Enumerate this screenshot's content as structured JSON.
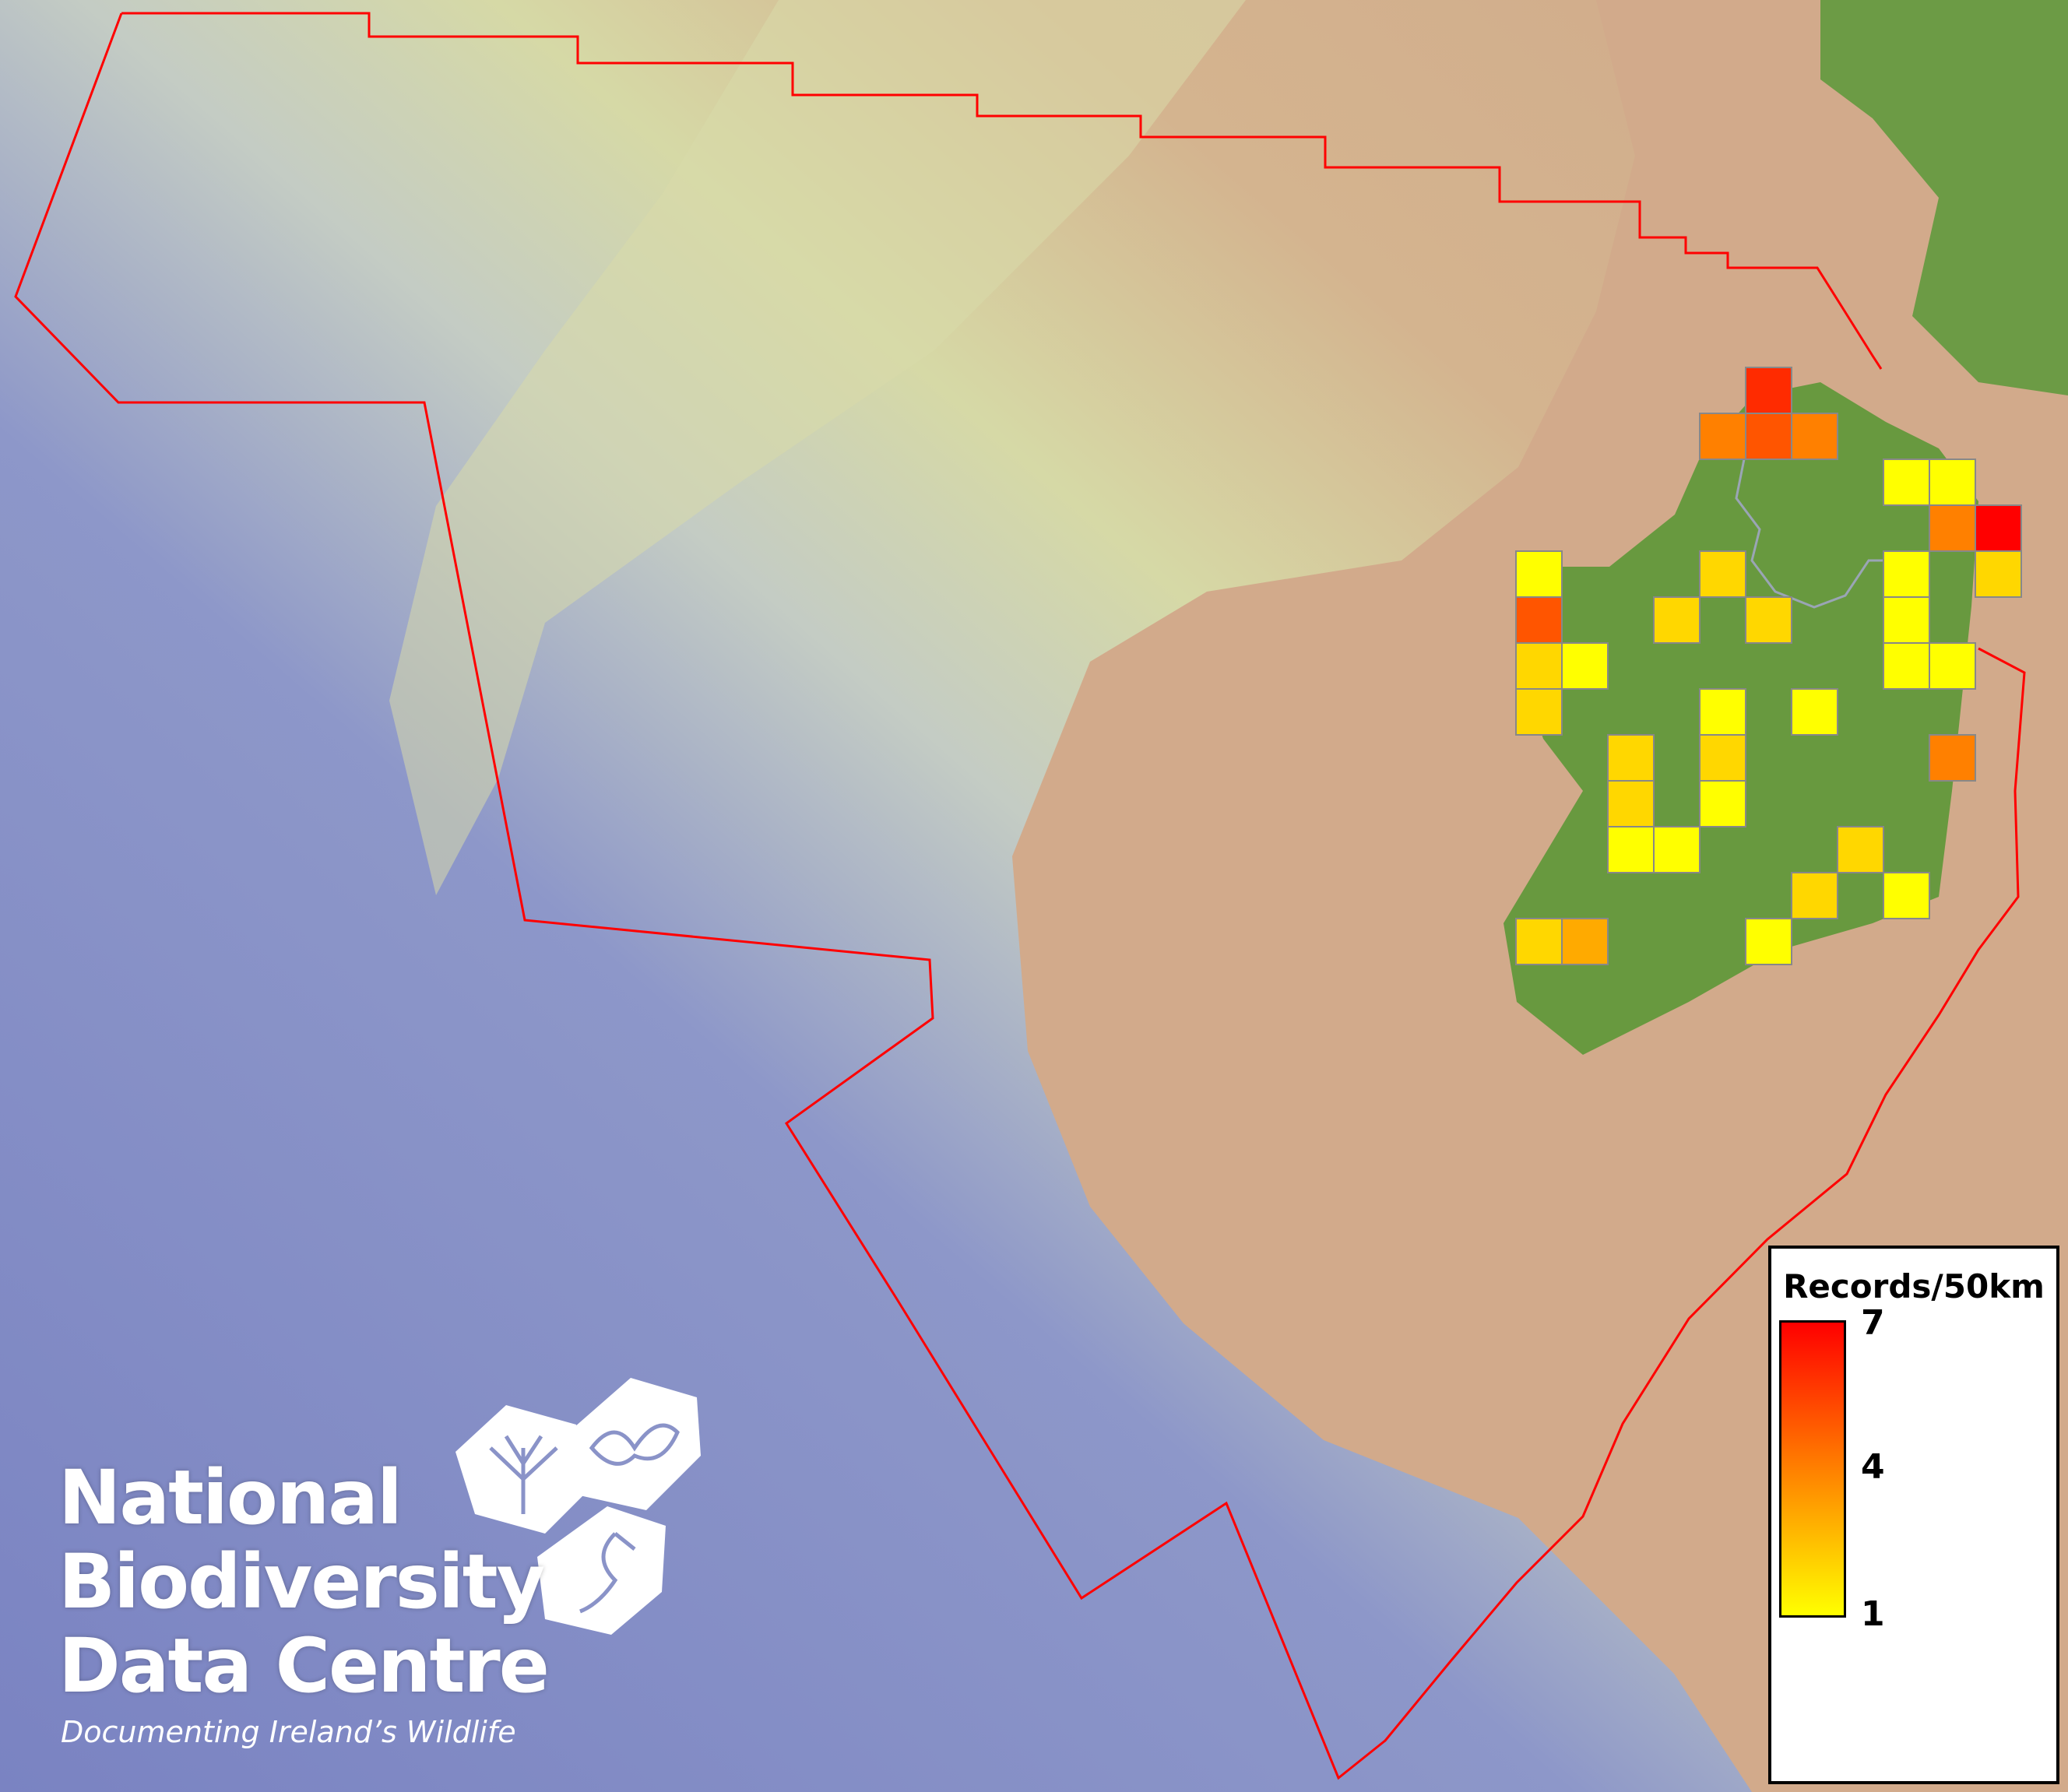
{
  "map": {
    "colors": {
      "deep_ocean": "#7b86c4",
      "slope": "#c9cfa8",
      "shelf": "#d3a98a",
      "land": "#6a9a45",
      "boundary": "#ff0000",
      "cell_border": "#888888"
    },
    "value_colors": {
      "1": "#ffff00",
      "2": "#ffd700",
      "3": "#ffaa00",
      "4": "#ff8000",
      "5": "#ff5500",
      "6": "#ff2b00",
      "7": "#ff0000"
    },
    "cells": [
      {
        "value": 6
      },
      {
        "value": 4
      },
      {
        "value": 5
      },
      {
        "value": 4
      },
      {
        "value": 1
      },
      {
        "value": 1
      },
      {
        "value": 4
      },
      {
        "value": 7
      },
      {
        "value": 1
      },
      {
        "value": 2
      },
      {
        "value": 1
      },
      {
        "value": 2
      },
      {
        "value": 5
      },
      {
        "value": 2
      },
      {
        "value": 2
      },
      {
        "value": 1
      },
      {
        "value": 2
      },
      {
        "value": 1
      },
      {
        "value": 1
      },
      {
        "value": 1
      },
      {
        "value": 2
      },
      {
        "value": 1
      },
      {
        "value": 1
      },
      {
        "value": 2
      },
      {
        "value": 2
      },
      {
        "value": 4
      },
      {
        "value": 2
      },
      {
        "value": 1
      },
      {
        "value": 1
      },
      {
        "value": 1
      },
      {
        "value": 2
      },
      {
        "value": 2
      },
      {
        "value": 1
      },
      {
        "value": 2
      },
      {
        "value": 3
      },
      {
        "value": 1
      }
    ]
  },
  "legend": {
    "title": "Records/50km",
    "max": "7",
    "mid": "4",
    "min": "1"
  },
  "logo": {
    "line1": "National",
    "line2": "Biodiversity",
    "line3": "Data Centre",
    "tagline": "Documenting Ireland’s Wildlife"
  }
}
